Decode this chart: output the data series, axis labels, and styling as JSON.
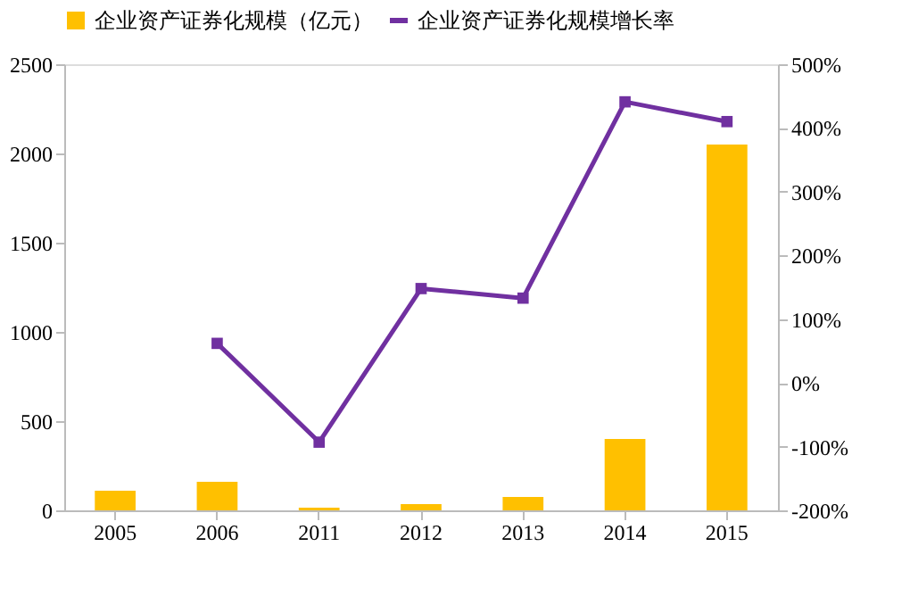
{
  "chart_data": {
    "type": "bar",
    "categories": [
      "2005",
      "2006",
      "2011",
      "2012",
      "2013",
      "2014",
      "2015"
    ],
    "series": [
      {
        "name": "企业资产证券化规模（亿元）",
        "color": "#ffc000",
        "values": [
          110,
          160,
          15,
          35,
          75,
          400,
          2050
        ]
      },
      {
        "name": "企业资产证券化规模增长率",
        "type": "line",
        "axis": "y2",
        "color": "#7030a0",
        "marker": "square",
        "values": [
          null,
          62,
          -93,
          148,
          133,
          441,
          410
        ]
      }
    ],
    "ylim": [
      0,
      2500
    ],
    "yticks": [
      0,
      500,
      1000,
      1500,
      2000,
      2500
    ],
    "y2lim": [
      -200,
      500
    ],
    "y2ticks": [
      {
        "value": -200,
        "label": "-200%"
      },
      {
        "value": -100,
        "label": "-100%"
      },
      {
        "value": 0,
        "label": "0%"
      },
      {
        "value": 100,
        "label": "100%"
      },
      {
        "value": 200,
        "label": "200%"
      },
      {
        "value": 300,
        "label": "300%"
      },
      {
        "value": 400,
        "label": "400%"
      },
      {
        "value": 500,
        "label": "500%"
      }
    ],
    "grid": false,
    "legend": "top"
  }
}
